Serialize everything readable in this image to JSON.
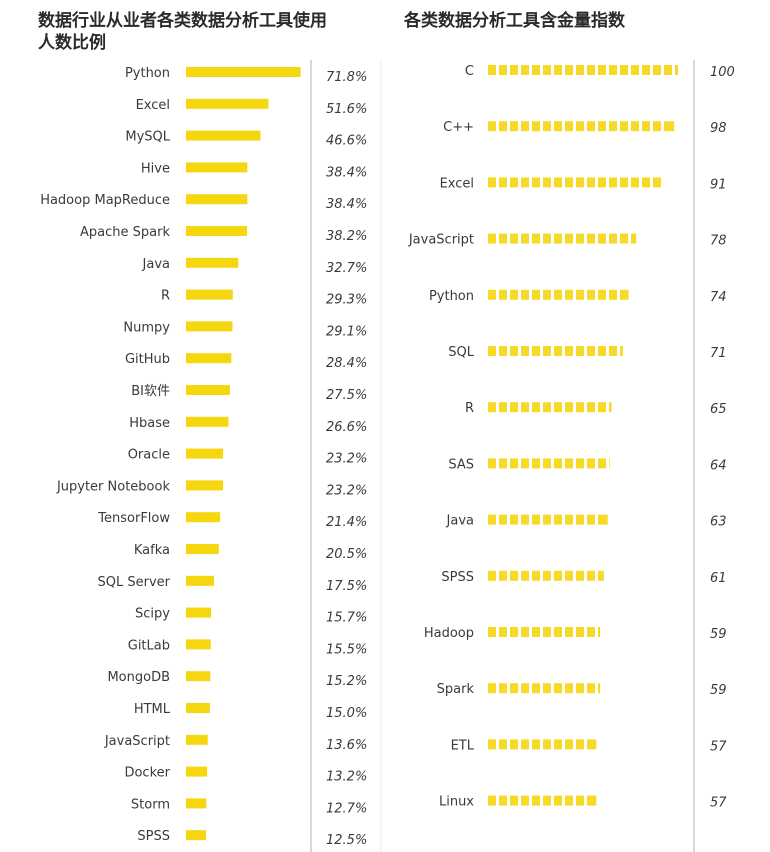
{
  "left_title": "数据行业从业者各类数据分析工具使用人数比例",
  "right_title": "各类数据分析工具含金量指数",
  "colors": {
    "bar": "#F5D60F",
    "divider": "#cccccc"
  },
  "chart_data": [
    {
      "type": "bar",
      "orientation": "horizontal",
      "title": "数据行业从业者各类数据分析工具使用人数比例",
      "value_suffix": "%",
      "categories": [
        "Python",
        "Excel",
        "MySQL",
        "Hive",
        "Hadoop MapReduce",
        "Apache Spark",
        "Java",
        "R",
        "Numpy",
        "GitHub",
        "BI软件",
        "Hbase",
        "Oracle",
        "Jupyter Notebook",
        "TensorFlow",
        "Kafka",
        "SQL Server",
        "Scipy",
        "GitLab",
        "MongoDB",
        "HTML",
        "JavaScript",
        "Docker",
        "Storm",
        "SPSS"
      ],
      "values": [
        71.8,
        51.6,
        46.6,
        38.4,
        38.4,
        38.2,
        32.7,
        29.3,
        29.1,
        28.4,
        27.5,
        26.6,
        23.2,
        23.2,
        21.4,
        20.5,
        17.5,
        15.7,
        15.5,
        15.2,
        15.0,
        13.6,
        13.2,
        12.7,
        12.5
      ],
      "xlim": [
        0,
        72
      ]
    },
    {
      "type": "bar",
      "orientation": "horizontal",
      "style": "dotted",
      "title": "各类数据分析工具含金量指数",
      "categories": [
        "C",
        "C++",
        "Excel",
        "JavaScript",
        "Python",
        "SQL",
        "R",
        "SAS",
        "Java",
        "SPSS",
        "Hadoop",
        "Spark",
        "ETL",
        "Linux"
      ],
      "values": [
        100,
        98,
        91,
        78,
        74,
        71,
        65,
        64,
        63,
        61,
        59,
        59,
        57,
        57
      ],
      "xlim": [
        0,
        100
      ]
    }
  ]
}
